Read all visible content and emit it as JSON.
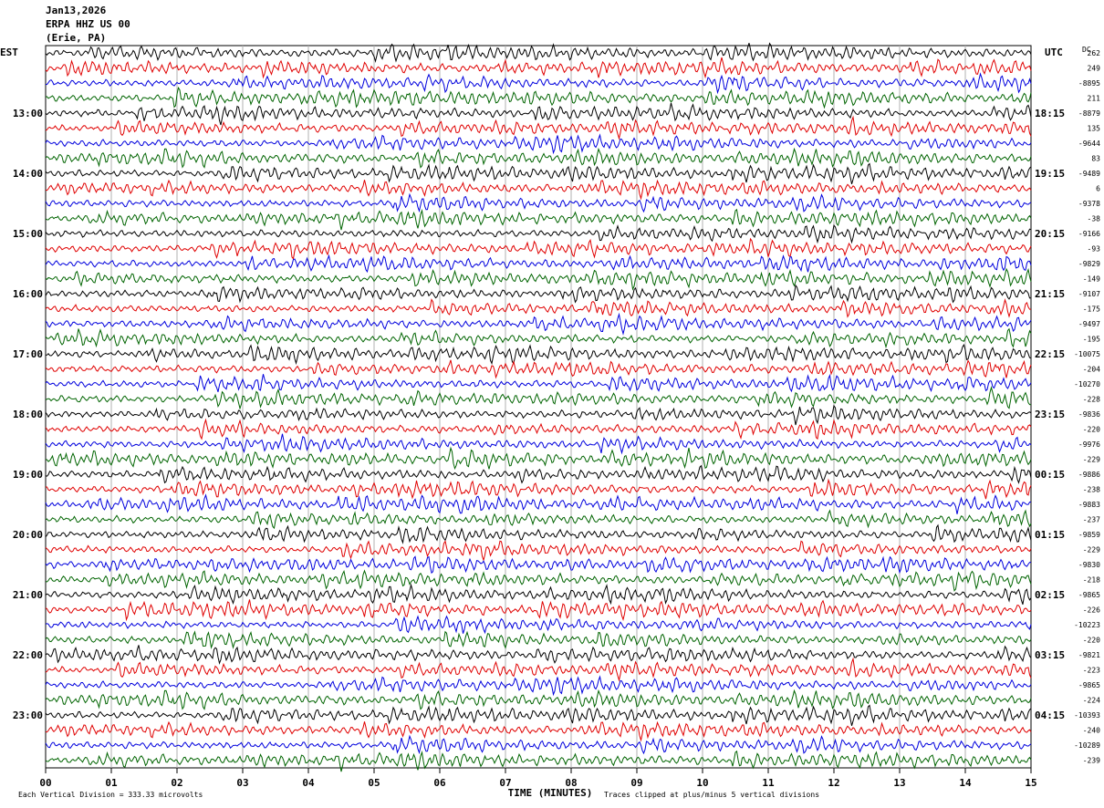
{
  "header": {
    "date": "Jan13,2026",
    "station": "ERPA HHZ US 00",
    "location": "(Erie, PA)"
  },
  "chart_data": {
    "type": "line",
    "title": "ERPA HHZ US 00",
    "left_timezone": "EST",
    "right_timezone": "UTC",
    "dc_label": "DC",
    "xlabel": "TIME (MINUTES)",
    "xlim": [
      0,
      15
    ],
    "x_ticks": [
      "00",
      "01",
      "02",
      "03",
      "04",
      "05",
      "06",
      "07",
      "08",
      "09",
      "10",
      "11",
      "12",
      "13",
      "14",
      "15"
    ],
    "left_hour_labels": [
      "13:00",
      "14:00",
      "15:00",
      "16:00",
      "17:00",
      "18:00",
      "19:00",
      "20:00",
      "21:00",
      "22:00",
      "23:00"
    ],
    "right_hour_labels": [
      "18:15",
      "19:15",
      "20:15",
      "21:15",
      "22:15",
      "23:15",
      "00:15",
      "01:15",
      "02:15",
      "03:15",
      "04:15"
    ],
    "trace_colors": [
      "#000000",
      "#e00000",
      "#0000dd",
      "#006400"
    ],
    "traces_per_hour": 4,
    "first_labeled_trace_index": 4,
    "dc_offsets": [
      "262",
      "249",
      "-8895",
      "211",
      "-8879",
      "135",
      "-9644",
      "83",
      "-9489",
      "6",
      "-9378",
      "-38",
      "-9166",
      "-93",
      "-9829",
      "-149",
      "-9107",
      "-175",
      "-9497",
      "-195",
      "-10075",
      "-204",
      "-10270",
      "-228",
      "-9836",
      "-220",
      "-9976",
      "-229",
      "-9886",
      "-238",
      "-9883",
      "-237",
      "-9859",
      "-229",
      "-9830",
      "-218",
      "-9865",
      "-226",
      "-10223",
      "-220",
      "-9821",
      "-223",
      "-9865",
      "-224",
      "-10393",
      "-240",
      "-10289",
      "-239"
    ],
    "footer_scale": "Each Vertical Division =  333.33 microvolts",
    "footer_clip": "Traces clipped at plus/minus 5 vertical divisions",
    "grid": true
  }
}
